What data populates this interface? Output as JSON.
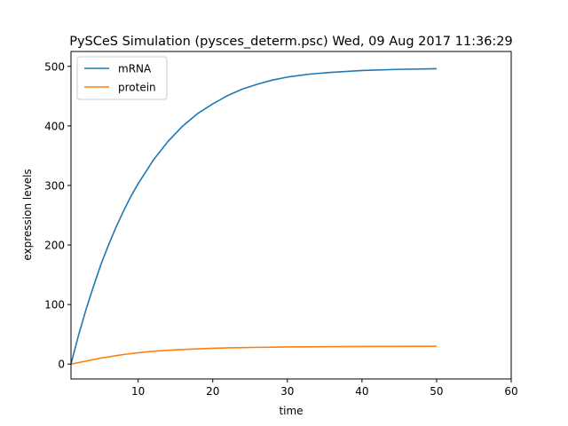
{
  "chart_data": {
    "type": "line",
    "title": "PySCeS Simulation (pysces_determ.psc) Wed, 09 Aug 2017 11:36:29",
    "xlabel": "time",
    "ylabel": "expression levels",
    "xlim": [
      1,
      60
    ],
    "ylim": [
      -25,
      525
    ],
    "xticks": [
      10,
      20,
      30,
      40,
      50,
      60
    ],
    "yticks": [
      0,
      100,
      200,
      300,
      400,
      500
    ],
    "grid": false,
    "legend": "top-left",
    "x": [
      1,
      2,
      3,
      4,
      5,
      6,
      7,
      8,
      9,
      10,
      12,
      14,
      16,
      18,
      20,
      22,
      24,
      26,
      28,
      30,
      33,
      36,
      40,
      45,
      50
    ],
    "series": [
      {
        "name": "mRNA",
        "color": "#1f77b4",
        "values": [
          0,
          48,
          91,
          130,
          167,
          199,
          229,
          256,
          281,
          303,
          342,
          374,
          400,
          421,
          437,
          451,
          462,
          470,
          477,
          482,
          487,
          490,
          493,
          495,
          496
        ]
      },
      {
        "name": "protein",
        "color": "#ff7f0e",
        "values": [
          0,
          2.5,
          5,
          7.5,
          10,
          12,
          14,
          16,
          17.5,
          19,
          21.5,
          23.2,
          24.5,
          25.6,
          26.5,
          27.2,
          27.7,
          28.1,
          28.4,
          28.7,
          29.0,
          29.3,
          29.5,
          29.7,
          29.8
        ]
      }
    ]
  }
}
